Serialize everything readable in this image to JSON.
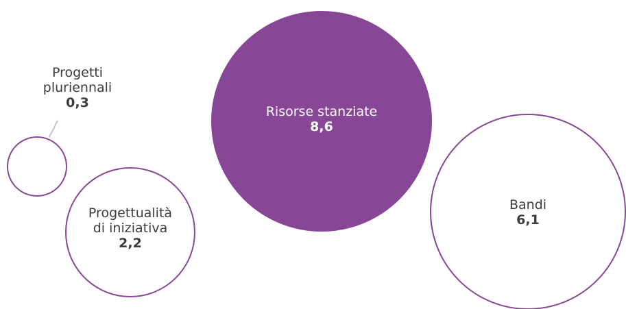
{
  "chart_data": {
    "type": "bubble",
    "unit": "",
    "bubbles": [
      {
        "id": "progetti-pluriennali",
        "lines": [
          "Progetti",
          "pluriennali"
        ],
        "value_label": "0,3",
        "value": 0.3,
        "filled": false,
        "label_outside": true
      },
      {
        "id": "progettualita-di-iniziativa",
        "lines": [
          "Progettualità",
          "di iniziativa"
        ],
        "value_label": "2,2",
        "value": 2.2,
        "filled": false,
        "label_outside": false
      },
      {
        "id": "risorse-stanziate",
        "lines": [
          "Risorse stanziate"
        ],
        "value_label": "8,6",
        "value": 8.6,
        "filled": true,
        "label_outside": false
      },
      {
        "id": "bandi",
        "lines": [
          "Bandi"
        ],
        "value_label": "6,1",
        "value": 6.1,
        "filled": false,
        "label_outside": false
      }
    ]
  },
  "colors": {
    "accent": "#874796",
    "text_dark": "#3c3c3c",
    "text_on_accent": "#ffffff",
    "leader_line": "#c9c4b8",
    "background": "#ffffff"
  }
}
